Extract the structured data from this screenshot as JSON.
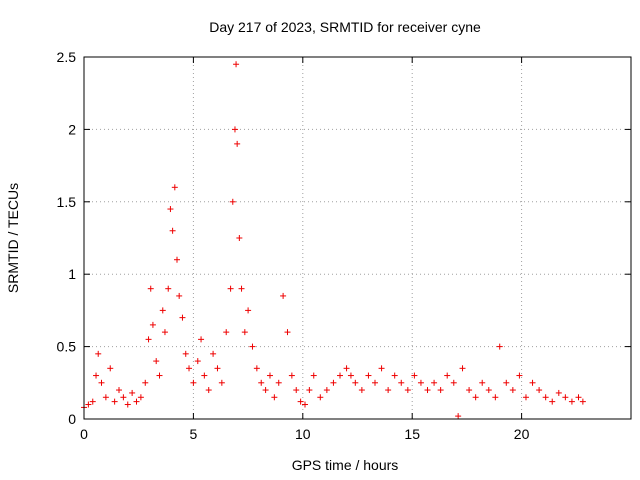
{
  "chart_data": {
    "type": "scatter",
    "title": "Day 217 of 2023, SRMTID for receiver cyne",
    "xlabel": "GPS time / hours",
    "ylabel": "SRMTID / TECUs",
    "xlim": [
      0,
      25
    ],
    "ylim": [
      0,
      2.5
    ],
    "x_ticks": [
      0,
      5,
      10,
      15,
      20
    ],
    "x_tick_labels": [
      "0",
      "5",
      "10",
      "15",
      "20"
    ],
    "y_ticks": [
      0,
      0.5,
      1,
      1.5,
      2,
      2.5
    ],
    "y_tick_labels": [
      "0",
      "0.5",
      "1",
      "1.5",
      "2",
      "2.5"
    ],
    "grid": true,
    "marker": "+",
    "series": [
      {
        "name": "SRMTID",
        "color": "#ee0000",
        "x": [
          0.0,
          0.2,
          0.4,
          0.55,
          0.65,
          0.8,
          1.0,
          1.2,
          1.4,
          1.6,
          1.8,
          2.0,
          2.2,
          2.4,
          2.6,
          2.8,
          2.95,
          3.05,
          3.15,
          3.3,
          3.45,
          3.6,
          3.7,
          3.85,
          3.95,
          4.05,
          4.15,
          4.25,
          4.35,
          4.5,
          4.65,
          4.8,
          5.0,
          5.2,
          5.35,
          5.5,
          5.7,
          5.9,
          6.1,
          6.3,
          6.5,
          6.7,
          6.8,
          6.9,
          6.95,
          7.0,
          7.1,
          7.2,
          7.35,
          7.5,
          7.7,
          7.9,
          8.1,
          8.3,
          8.5,
          8.7,
          8.9,
          9.1,
          9.3,
          9.5,
          9.7,
          9.9,
          10.1,
          10.3,
          10.5,
          10.8,
          11.1,
          11.4,
          11.7,
          12.0,
          12.2,
          12.4,
          12.7,
          13.0,
          13.3,
          13.6,
          13.9,
          14.2,
          14.5,
          14.8,
          15.1,
          15.4,
          15.7,
          16.0,
          16.3,
          16.6,
          16.9,
          17.1,
          17.3,
          17.6,
          17.9,
          18.2,
          18.5,
          18.8,
          19.0,
          19.3,
          19.6,
          19.9,
          20.2,
          20.5,
          20.8,
          21.1,
          21.4,
          21.7,
          22.0,
          22.3,
          22.6,
          22.8
        ],
        "y": [
          0.08,
          0.1,
          0.12,
          0.3,
          0.45,
          0.25,
          0.15,
          0.35,
          0.12,
          0.2,
          0.15,
          0.1,
          0.18,
          0.12,
          0.15,
          0.25,
          0.55,
          0.9,
          0.65,
          0.4,
          0.3,
          0.75,
          0.6,
          0.9,
          1.45,
          1.3,
          1.6,
          1.1,
          0.85,
          0.7,
          0.45,
          0.35,
          0.25,
          0.4,
          0.55,
          0.3,
          0.2,
          0.45,
          0.35,
          0.25,
          0.6,
          0.9,
          1.5,
          2.0,
          2.45,
          1.9,
          1.25,
          0.9,
          0.6,
          0.75,
          0.5,
          0.35,
          0.25,
          0.2,
          0.3,
          0.15,
          0.25,
          0.85,
          0.6,
          0.3,
          0.2,
          0.12,
          0.1,
          0.2,
          0.3,
          0.15,
          0.2,
          0.25,
          0.3,
          0.35,
          0.3,
          0.25,
          0.2,
          0.3,
          0.25,
          0.35,
          0.2,
          0.3,
          0.25,
          0.2,
          0.3,
          0.25,
          0.2,
          0.25,
          0.2,
          0.3,
          0.25,
          0.02,
          0.35,
          0.2,
          0.15,
          0.25,
          0.2,
          0.15,
          0.5,
          0.25,
          0.2,
          0.3,
          0.15,
          0.25,
          0.2,
          0.15,
          0.12,
          0.18,
          0.15,
          0.12,
          0.15,
          0.12
        ]
      }
    ]
  }
}
